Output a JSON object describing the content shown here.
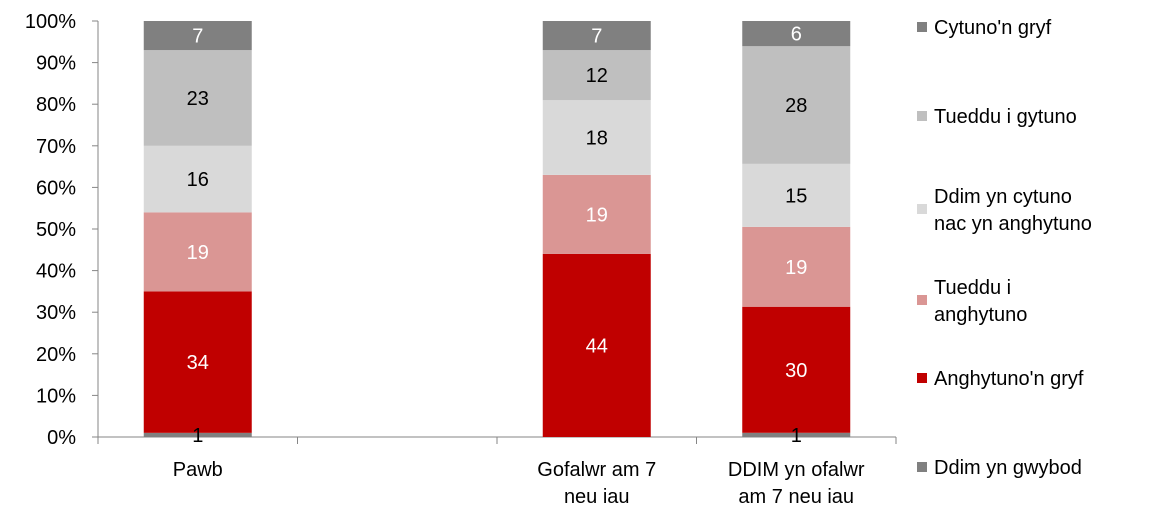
{
  "chart_data": {
    "type": "bar",
    "stacked": true,
    "percent": true,
    "categories": [
      [
        "Pawb"
      ],
      [],
      [
        "Gofalwr am 7",
        "neu iau"
      ],
      [
        "DDIM yn ofalwr",
        "am 7 neu iau"
      ]
    ],
    "ylim": [
      0,
      100
    ],
    "yticks": [
      "0%",
      "10%",
      "20%",
      "30%",
      "40%",
      "50%",
      "60%",
      "70%",
      "80%",
      "90%",
      "100%"
    ],
    "series": [
      {
        "name": "Ddim yn gwybod",
        "legend": [
          "Ddim yn gwybod"
        ],
        "color": "#808080",
        "label_color": "#000000",
        "values": [
          1,
          null,
          0,
          1
        ],
        "labels": [
          "1",
          "",
          "",
          "1"
        ]
      },
      {
        "name": "Anghytuno'n gryf",
        "legend": [
          "Anghytuno'n gryf"
        ],
        "color": "#C00000",
        "label_color": "#ffffff",
        "values": [
          34,
          null,
          44,
          30
        ],
        "labels": [
          "34",
          "",
          "44",
          "30"
        ]
      },
      {
        "name": "Tueddu i anghytuno",
        "legend": [
          "Tueddu i",
          "anghytuno"
        ],
        "color": "#DA9694",
        "label_color": "#ffffff",
        "values": [
          19,
          null,
          19,
          19
        ],
        "labels": [
          "19",
          "",
          "19",
          "19"
        ]
      },
      {
        "name": "Ddim yn cytuno nac yn anghytuno",
        "legend": [
          "Ddim yn cytuno",
          "nac yn anghytuno"
        ],
        "color": "#D9D9D9",
        "label_color": "#000000",
        "values": [
          16,
          null,
          18,
          15
        ],
        "labels": [
          "16",
          "",
          "18",
          "15"
        ]
      },
      {
        "name": "Tueddu i gytuno",
        "legend": [
          "Tueddu i gytuno"
        ],
        "color": "#BFBFBF",
        "label_color": "#000000",
        "values": [
          23,
          null,
          12,
          28
        ],
        "labels": [
          "23",
          "",
          "12",
          "28"
        ]
      },
      {
        "name": "Cytuno'n gryf",
        "legend": [
          "Cytuno'n gryf"
        ],
        "color": "#808080",
        "label_color": "#ffffff",
        "values": [
          7,
          null,
          7,
          6
        ],
        "labels": [
          "7",
          "",
          "7",
          "6"
        ]
      }
    ],
    "legend_position": "right",
    "grid": false
  }
}
